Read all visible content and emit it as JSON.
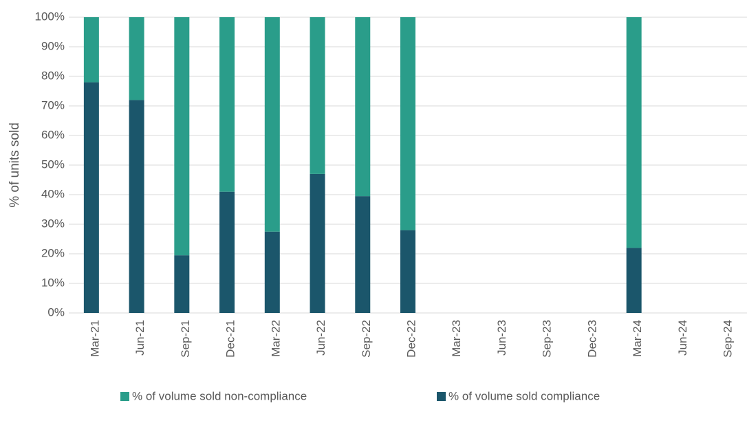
{
  "chart_data": {
    "type": "stacked_bar",
    "y_label": "% of units sold",
    "categories": [
      "Mar-21",
      "Jun-21",
      "Sep-21",
      "Dec-21",
      "Mar-22",
      "Jun-22",
      "Sep-22",
      "Dec-22",
      "Mar-23",
      "Jun-23",
      "Sep-23",
      "Dec-23",
      "Mar-24",
      "Jun-24",
      "Sep-24"
    ],
    "series": [
      {
        "name": "% of volume sold compliance",
        "color": "#1b566b",
        "values": [
          78,
          72,
          19.5,
          41,
          27.5,
          47,
          39.5,
          28,
          null,
          null,
          null,
          null,
          22,
          null,
          null
        ]
      },
      {
        "name": "% of volume sold non-compliance",
        "color": "#2a9d8a",
        "values": [
          22,
          28,
          80.5,
          59,
          72.5,
          53,
          60.5,
          72,
          null,
          null,
          null,
          null,
          78,
          null,
          null
        ]
      }
    ],
    "ylim": [
      0,
      100
    ],
    "yticks": [
      {
        "value": 0,
        "label": "0%"
      },
      {
        "value": 10,
        "label": "10%"
      },
      {
        "value": 20,
        "label": "20%"
      },
      {
        "value": 30,
        "label": "30%"
      },
      {
        "value": 40,
        "label": "40%"
      },
      {
        "value": 50,
        "label": "50%"
      },
      {
        "value": 60,
        "label": "60%"
      },
      {
        "value": 70,
        "label": "70%"
      },
      {
        "value": 80,
        "label": "80%"
      },
      {
        "value": 90,
        "label": "90%"
      },
      {
        "value": 100,
        "label": "100%"
      }
    ],
    "grid": true
  }
}
